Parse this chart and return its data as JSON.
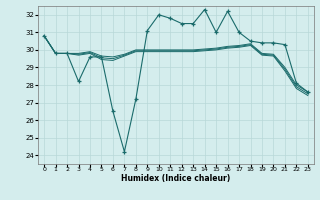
{
  "title": "",
  "xlabel": "Humidex (Indice chaleur)",
  "bg_color": "#d4eded",
  "grid_color": "#b8d8d8",
  "line_color": "#1a6b6b",
  "x_ticks": [
    0,
    1,
    2,
    3,
    4,
    5,
    6,
    7,
    8,
    9,
    10,
    11,
    12,
    13,
    14,
    15,
    16,
    17,
    18,
    19,
    20,
    21,
    22,
    23
  ],
  "y_ticks": [
    24,
    25,
    26,
    27,
    28,
    29,
    30,
    31,
    32
  ],
  "xlim": [
    -0.5,
    23.5
  ],
  "ylim": [
    23.5,
    32.5
  ],
  "series1_y": [
    30.8,
    29.8,
    29.8,
    29.8,
    29.9,
    29.65,
    29.6,
    29.75,
    30.0,
    30.0,
    30.0,
    30.0,
    30.0,
    30.0,
    30.05,
    30.1,
    30.2,
    30.25,
    30.35,
    29.8,
    29.75,
    29.0,
    28.0,
    27.6
  ],
  "series2_y": [
    30.8,
    29.8,
    29.8,
    29.75,
    29.85,
    29.55,
    29.5,
    29.7,
    29.95,
    29.95,
    29.95,
    29.95,
    29.95,
    29.95,
    30.0,
    30.05,
    30.15,
    30.2,
    30.3,
    29.75,
    29.7,
    28.9,
    27.9,
    27.5
  ],
  "series3_y": [
    30.8,
    29.8,
    29.8,
    29.7,
    29.8,
    29.45,
    29.4,
    29.65,
    29.9,
    29.9,
    29.9,
    29.9,
    29.9,
    29.9,
    29.95,
    30.0,
    30.1,
    30.15,
    30.25,
    29.7,
    29.65,
    28.8,
    27.8,
    27.4
  ],
  "series_main_y": [
    30.8,
    29.8,
    29.8,
    28.2,
    29.6,
    29.6,
    26.5,
    24.2,
    27.2,
    31.1,
    32.0,
    31.8,
    31.5,
    31.5,
    32.3,
    31.0,
    32.2,
    31.0,
    30.5,
    30.4,
    30.4,
    30.3,
    28.1,
    27.6
  ]
}
